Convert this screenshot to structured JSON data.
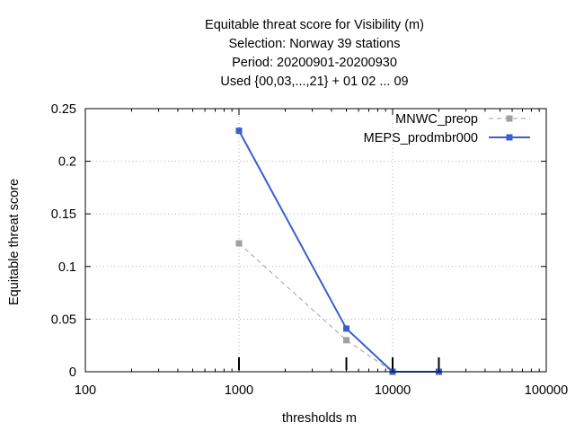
{
  "chart_data": {
    "type": "line",
    "title_lines": [
      "Equitable threat score  for Visibility (m)",
      "Selection: Norway     39 stations",
      "Period: 20200901-20200930",
      "Used {00,03,...,21} + 01 02 ... 09"
    ],
    "xlabel": "thresholds m",
    "ylabel": "Equitable threat score",
    "xscale": "log",
    "xlim": [
      100,
      100000
    ],
    "ylim": [
      0,
      0.25
    ],
    "xticks": [
      100,
      1000,
      10000,
      100000
    ],
    "xtick_labels": [
      "100",
      "1000",
      "10000",
      "100000"
    ],
    "yticks": [
      0,
      0.05,
      0.1,
      0.15,
      0.2,
      0.25
    ],
    "ytick_labels": [
      "0",
      "0.05",
      "0.1",
      "0.15",
      "0.2",
      "0.25"
    ],
    "grid": true,
    "legend_position": "top-right",
    "threshold_markers": [
      1000,
      5000,
      10000,
      20000
    ],
    "series": [
      {
        "name": "MNWC_preop",
        "color": "#a0a0a0",
        "dashed": true,
        "x": [
          1000,
          5000,
          10000,
          20000
        ],
        "y": [
          0.122,
          0.03,
          0.0,
          0.0
        ]
      },
      {
        "name": "MEPS_prodmbr000",
        "color": "#3a5fcd",
        "dashed": false,
        "x": [
          1000,
          5000,
          10000,
          20000
        ],
        "y": [
          0.229,
          0.041,
          0.0,
          0.0
        ]
      }
    ]
  }
}
